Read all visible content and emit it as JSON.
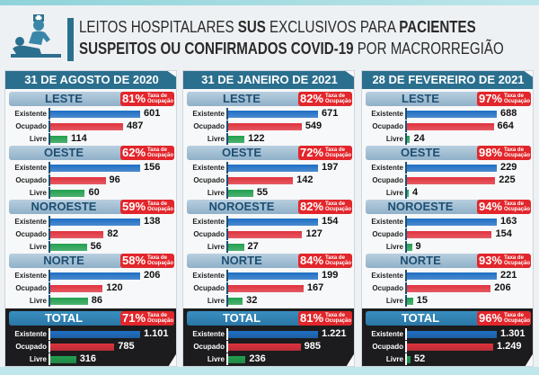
{
  "header": {
    "title_parts": [
      {
        "t": "LEITOS HOSPITALARES ",
        "b": false
      },
      {
        "t": "SUS",
        "b": true
      },
      {
        "t": " EXCLUSIVOS PARA ",
        "b": false
      },
      {
        "t": "PACIENTES",
        "b": true
      },
      {
        "br": true
      },
      {
        "t": "SUSPEITOS OU CONFIRMADOS COVID-19",
        "b": true
      },
      {
        "t": " POR MACRORREGIÃO",
        "b": false
      }
    ],
    "icon": "doctor-patient-icon"
  },
  "badge_label": "Taxa de Ocupação",
  "row_labels": [
    "Existente",
    "Ocupado",
    "Livre"
  ],
  "colors": {
    "existente": "#1f6fc4",
    "ocupado": "#e0323d",
    "livre": "#22a04f",
    "badge": "#e2262b",
    "header": "#2b6f8e"
  },
  "chart_data": [
    {
      "type": "bar",
      "title": "31 DE AGOSTO DE 2020",
      "regions": [
        {
          "name": "LESTE",
          "rate": "81%",
          "values": [
            601,
            487,
            114
          ],
          "labels": [
            "601",
            "487",
            "114"
          ]
        },
        {
          "name": "OESTE",
          "rate": "62%",
          "values": [
            156,
            96,
            60
          ],
          "labels": [
            "156",
            "96",
            "60"
          ]
        },
        {
          "name": "NOROESTE",
          "rate": "59%",
          "values": [
            138,
            82,
            56
          ],
          "labels": [
            "138",
            "82",
            "56"
          ]
        },
        {
          "name": "NORTE",
          "rate": "58%",
          "values": [
            206,
            120,
            86
          ],
          "labels": [
            "206",
            "120",
            "86"
          ]
        },
        {
          "name": "TOTAL",
          "rate": "71%",
          "values": [
            1101,
            785,
            316
          ],
          "labels": [
            "1.101",
            "785",
            "316"
          ]
        }
      ]
    },
    {
      "type": "bar",
      "title": "31 DE JANEIRO DE 2021",
      "regions": [
        {
          "name": "LESTE",
          "rate": "82%",
          "values": [
            671,
            549,
            122
          ],
          "labels": [
            "671",
            "549",
            "122"
          ]
        },
        {
          "name": "OESTE",
          "rate": "72%",
          "values": [
            197,
            142,
            55
          ],
          "labels": [
            "197",
            "142",
            "55"
          ]
        },
        {
          "name": "NOROESTE",
          "rate": "82%",
          "values": [
            154,
            127,
            27
          ],
          "labels": [
            "154",
            "127",
            "27"
          ]
        },
        {
          "name": "NORTE",
          "rate": "84%",
          "values": [
            199,
            167,
            32
          ],
          "labels": [
            "199",
            "167",
            "32"
          ]
        },
        {
          "name": "TOTAL",
          "rate": "81%",
          "values": [
            1221,
            985,
            236
          ],
          "labels": [
            "1.221",
            "985",
            "236"
          ]
        }
      ]
    },
    {
      "type": "bar",
      "title": "28 DE FEVEREIRO DE 2021",
      "regions": [
        {
          "name": "LESTE",
          "rate": "97%",
          "values": [
            688,
            664,
            24
          ],
          "labels": [
            "688",
            "664",
            "24"
          ]
        },
        {
          "name": "OESTE",
          "rate": "98%",
          "values": [
            229,
            225,
            4
          ],
          "labels": [
            "229",
            "225",
            "4"
          ]
        },
        {
          "name": "NOROESTE",
          "rate": "94%",
          "values": [
            163,
            154,
            9
          ],
          "labels": [
            "163",
            "154",
            "9"
          ]
        },
        {
          "name": "NORTE",
          "rate": "93%",
          "values": [
            221,
            206,
            15
          ],
          "labels": [
            "221",
            "206",
            "15"
          ]
        },
        {
          "name": "TOTAL",
          "rate": "96%",
          "values": [
            1301,
            1249,
            52
          ],
          "labels": [
            "1.301",
            "1.249",
            "52"
          ]
        }
      ]
    }
  ]
}
